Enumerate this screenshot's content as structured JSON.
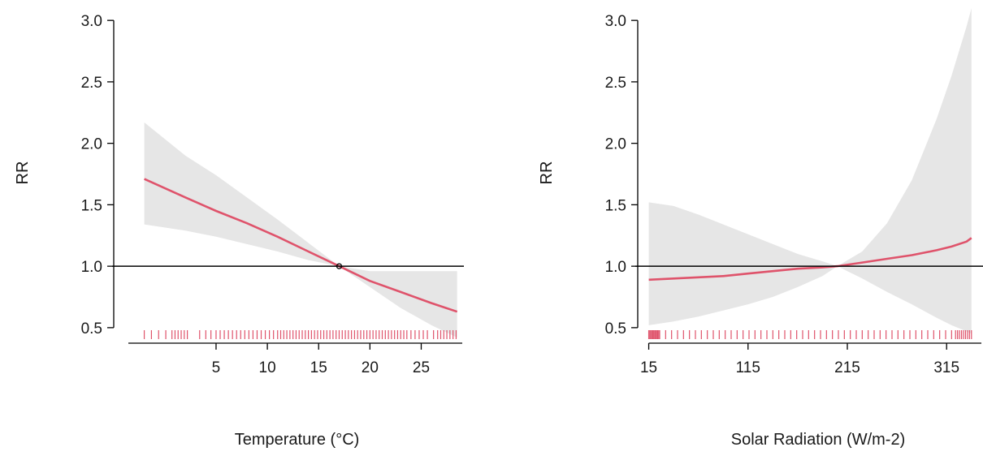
{
  "chart_data": [
    {
      "type": "line",
      "xlabel": "Temperature (°C)",
      "ylabel": "RR",
      "xlim": [
        -4.5,
        29
      ],
      "ylim": [
        0.42,
        3.1
      ],
      "x_ticks": [
        5,
        10,
        15,
        20,
        25
      ],
      "y_ticks": [
        0.5,
        1.0,
        1.5,
        2.0,
        2.5,
        3.0
      ],
      "y_tick_labels": [
        "0.5",
        "1.0",
        "1.5",
        "2.0",
        "2.5",
        "3.0"
      ],
      "reference_line": 1.0,
      "centering_point": {
        "x": 17,
        "y": 1.0
      },
      "colors": {
        "line": "#df536b",
        "band": "#e6e6e6",
        "reference": "#000000",
        "rug": "#df536b"
      },
      "series": [
        {
          "x": [
            -2,
            2,
            5,
            8,
            11,
            14,
            17,
            20,
            23,
            26,
            28.5
          ],
          "y": [
            1.71,
            1.56,
            1.45,
            1.35,
            1.24,
            1.12,
            1.0,
            0.88,
            0.79,
            0.7,
            0.63
          ],
          "lower": [
            1.34,
            1.29,
            1.24,
            1.18,
            1.12,
            1.05,
            1.0,
            0.83,
            0.66,
            0.52,
            0.42
          ],
          "upper": [
            2.17,
            1.9,
            1.74,
            1.56,
            1.38,
            1.19,
            1.0,
            0.96,
            0.96,
            0.96,
            0.96
          ]
        }
      ],
      "rug": [
        -2.0,
        -1.3,
        -0.6,
        0.1,
        0.7,
        1.0,
        1.3,
        1.6,
        1.9,
        2.2,
        3.4,
        4.0,
        4.5,
        5.0,
        5.4,
        5.8,
        6.2,
        6.6,
        7.0,
        7.4,
        7.8,
        8.2,
        8.6,
        9.0,
        9.4,
        9.8,
        10.2,
        10.6,
        11.0,
        11.3,
        11.6,
        11.9,
        12.2,
        12.5,
        12.8,
        13.1,
        13.4,
        13.7,
        14.0,
        14.3,
        14.6,
        14.9,
        15.2,
        15.5,
        15.8,
        16.1,
        16.4,
        16.7,
        17.0,
        17.3,
        17.6,
        17.9,
        18.2,
        18.5,
        18.8,
        19.1,
        19.4,
        19.7,
        20.0,
        20.3,
        20.6,
        20.9,
        21.2,
        21.5,
        21.8,
        22.1,
        22.4,
        22.7,
        23.0,
        23.3,
        23.6,
        24.0,
        24.4,
        24.8,
        25.2,
        25.6,
        26.2,
        26.6,
        26.9,
        27.2,
        27.5,
        27.8,
        28.1,
        28.4
      ]
    },
    {
      "type": "line",
      "xlabel": "Solar Radiation (W/m-2)",
      "ylabel": "RR",
      "xlim": [
        8,
        350
      ],
      "ylim": [
        0.42,
        3.1
      ],
      "x_ticks": [
        15,
        115,
        215,
        315
      ],
      "y_ticks": [
        0.5,
        1.0,
        1.5,
        2.0,
        2.5,
        3.0
      ],
      "y_tick_labels": [
        "0.5",
        "1.0",
        "1.5",
        "2.0",
        "2.5",
        "3.0"
      ],
      "reference_line": 1.0,
      "colors": {
        "line": "#df536b",
        "band": "#e6e6e6",
        "reference": "#000000",
        "rug": "#df536b"
      },
      "series": [
        {
          "x": [
            15,
            40,
            65,
            90,
            115,
            140,
            165,
            190,
            205,
            230,
            255,
            280,
            305,
            320,
            335,
            340
          ],
          "y": [
            0.89,
            0.9,
            0.91,
            0.92,
            0.94,
            0.96,
            0.98,
            0.99,
            1.0,
            1.03,
            1.06,
            1.09,
            1.13,
            1.16,
            1.2,
            1.23
          ],
          "lower": [
            0.52,
            0.55,
            0.59,
            0.64,
            0.69,
            0.75,
            0.83,
            0.92,
            1.0,
            0.9,
            0.79,
            0.69,
            0.58,
            0.52,
            0.47,
            0.45
          ],
          "upper": [
            1.52,
            1.49,
            1.42,
            1.34,
            1.26,
            1.18,
            1.1,
            1.04,
            1.0,
            1.12,
            1.35,
            1.7,
            2.2,
            2.55,
            2.95,
            3.1
          ]
        }
      ],
      "rug": [
        15,
        16,
        17,
        18,
        19,
        20,
        21,
        22,
        23,
        24,
        25,
        26,
        32,
        38,
        44,
        50,
        56,
        62,
        68,
        74,
        80,
        86,
        92,
        98,
        104,
        110,
        116,
        122,
        128,
        134,
        140,
        146,
        152,
        158,
        164,
        170,
        176,
        182,
        188,
        194,
        200,
        206,
        212,
        218,
        224,
        230,
        236,
        242,
        248,
        254,
        260,
        266,
        272,
        278,
        284,
        290,
        296,
        302,
        308,
        314,
        320,
        324,
        326,
        328,
        330,
        332,
        334,
        336,
        338,
        340
      ]
    }
  ]
}
